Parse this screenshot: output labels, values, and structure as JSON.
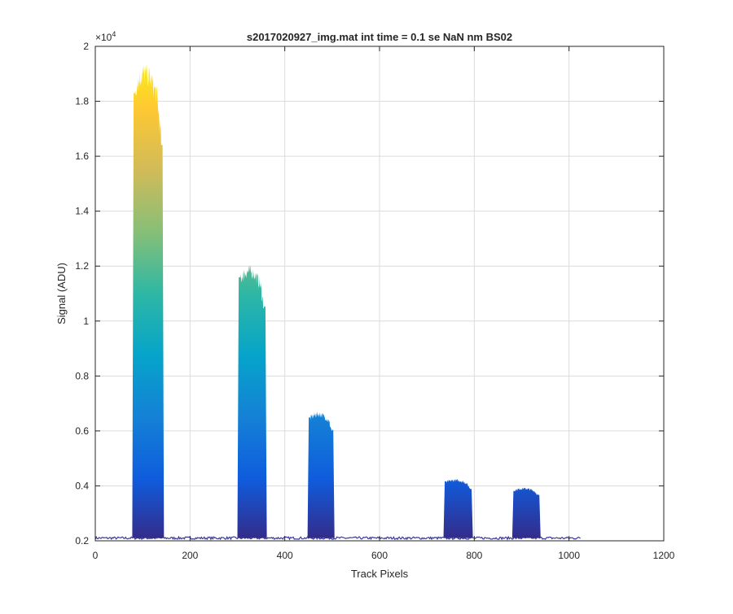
{
  "chart_data": {
    "type": "area",
    "title": "s2017020927_img.mat int time = 0.1 se  NaN nm BS02",
    "xlabel": "Track Pixels",
    "ylabel": "Signal (ADU)",
    "exponent_label": "×10",
    "exponent_power": "4",
    "xlim": [
      0,
      1200
    ],
    "ylim": [
      2000,
      20000
    ],
    "grid": true,
    "x_ticks": [
      0,
      200,
      400,
      600,
      800,
      1000,
      1200
    ],
    "x_tick_labels": [
      "0",
      "200",
      "400",
      "600",
      "800",
      "1000",
      "1200"
    ],
    "y_ticks": [
      2000,
      4000,
      6000,
      8000,
      10000,
      12000,
      14000,
      16000,
      18000,
      20000
    ],
    "y_tick_labels": [
      "0.2",
      "0.4",
      "0.6",
      "0.8",
      "1",
      "1.2",
      "1.4",
      "1.6",
      "1.8",
      "2"
    ],
    "baseline": 2100,
    "x_extent": [
      0,
      1025
    ],
    "colormap": [
      "#352a87",
      "#0f5cdd",
      "#1481d6",
      "#06a4ca",
      "#2eb7a4",
      "#87bf77",
      "#d1bb59",
      "#fec832",
      "#f9fb0e"
    ],
    "peaks": [
      {
        "x_start": 78,
        "x_end": 145,
        "peak": 19000
      },
      {
        "x_start": 300,
        "x_end": 362,
        "peak": 11800
      },
      {
        "x_start": 448,
        "x_end": 505,
        "peak": 6600
      },
      {
        "x_start": 735,
        "x_end": 797,
        "peak": 4200
      },
      {
        "x_start": 880,
        "x_end": 940,
        "peak": 3900
      }
    ]
  }
}
